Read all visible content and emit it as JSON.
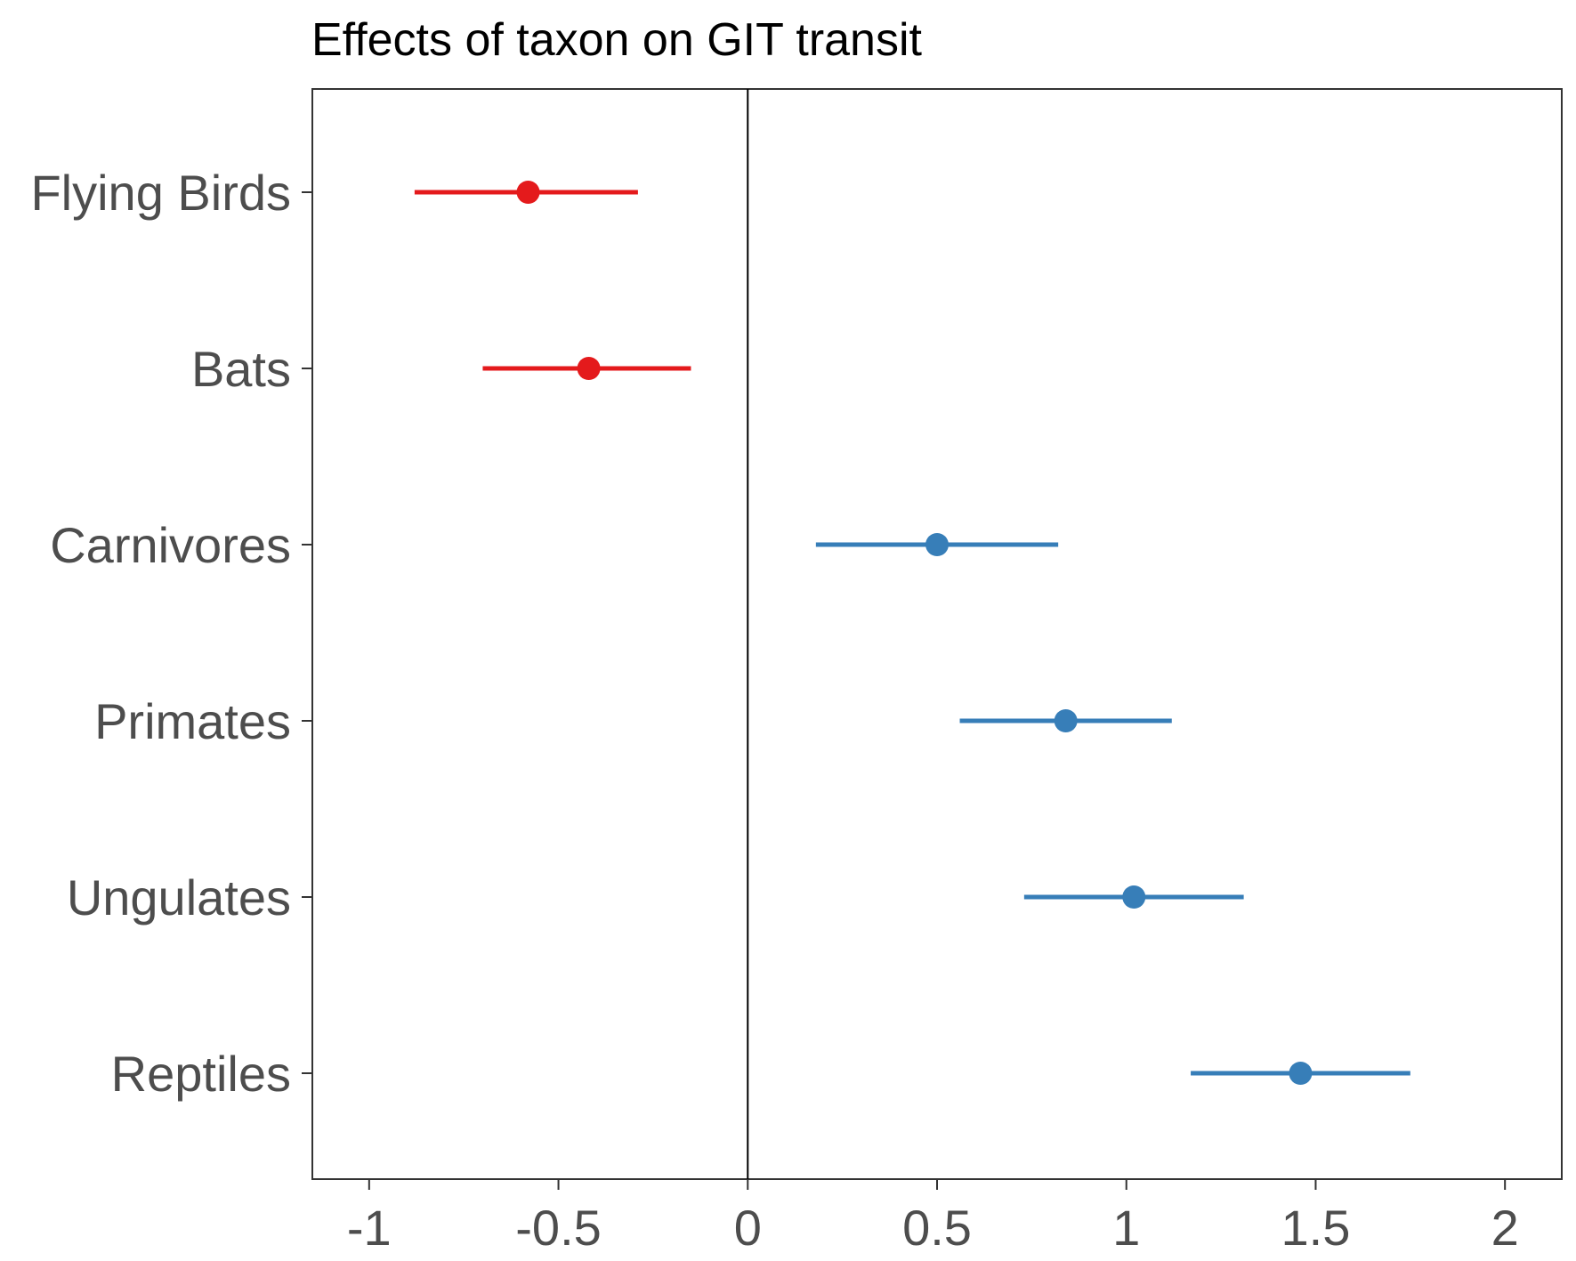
{
  "chart_data": {
    "type": "scatter",
    "title": "Effects of taxon on GIT transit",
    "xlabel": "",
    "ylabel": "",
    "xlim": [
      -1.15,
      2.15
    ],
    "x_ticks": [
      -1,
      -0.5,
      0,
      0.5,
      1,
      1.5,
      2
    ],
    "x_tick_labels": [
      "-1",
      "-0.5",
      "0",
      "0.5",
      "1",
      "1.5",
      "2"
    ],
    "reference_line_x": 0,
    "grid": false,
    "legend": "none",
    "categories": [
      "Flying Birds",
      "Bats",
      "Carnivores",
      "Primates",
      "Ungulates",
      "Reptiles"
    ],
    "estimates": [
      {
        "label": "Flying Birds",
        "estimate": -0.58,
        "lower": -0.88,
        "upper": -0.29,
        "color": "#e41a1c"
      },
      {
        "label": "Bats",
        "estimate": -0.42,
        "lower": -0.7,
        "upper": -0.15,
        "color": "#e41a1c"
      },
      {
        "label": "Carnivores",
        "estimate": 0.5,
        "lower": 0.18,
        "upper": 0.82,
        "color": "#377eb8"
      },
      {
        "label": "Primates",
        "estimate": 0.84,
        "lower": 0.56,
        "upper": 1.12,
        "color": "#377eb8"
      },
      {
        "label": "Ungulates",
        "estimate": 1.02,
        "lower": 0.73,
        "upper": 1.31,
        "color": "#377eb8"
      },
      {
        "label": "Reptiles",
        "estimate": 1.46,
        "lower": 1.17,
        "upper": 1.75,
        "color": "#377eb8"
      }
    ],
    "colors": {
      "negative": "#e41a1c",
      "positive": "#377eb8",
      "axis": "#333333",
      "tick_label": "#4d4d4d",
      "title": "#000000"
    }
  }
}
